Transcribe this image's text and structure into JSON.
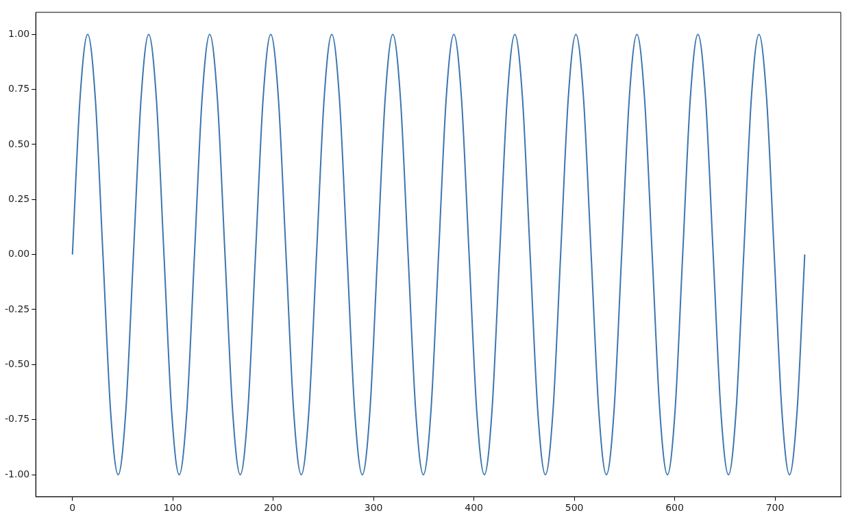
{
  "chart_data": {
    "type": "line",
    "x": [
      0,
      7.6,
      15.2,
      22.8,
      30.4,
      38,
      45.6,
      53.2,
      60.8,
      68.4,
      76,
      83.6,
      91.2,
      98.8,
      106.4,
      114,
      121.6,
      129.2,
      136.8,
      144.4,
      152,
      159.6,
      167.2,
      174.8,
      182.4,
      190,
      197.6,
      205.2,
      212.8,
      220.4,
      228,
      235.6,
      243.2,
      250.8,
      258.4,
      266,
      273.6,
      281.2,
      288.8,
      296.4,
      304,
      311.6,
      319.2,
      326.8,
      334.4,
      342,
      349.6,
      357.2,
      364.8,
      372.4,
      380,
      387.6,
      395.2,
      402.8,
      410.4,
      418,
      425.6,
      433.2,
      440.8,
      448.4,
      456,
      463.6,
      471.2,
      478.8,
      486.4,
      494,
      501.6,
      509.2,
      516.8,
      524.4,
      532,
      539.6,
      547.2,
      554.8,
      562.4,
      570,
      577.6,
      585.2,
      592.8,
      600.4,
      608,
      615.6,
      623.2,
      630.8,
      638.4,
      646,
      653.6,
      661.2,
      668.8,
      676.4,
      684,
      691.6,
      699.2,
      706.8,
      714.4,
      722,
      729.6
    ],
    "series": [
      {
        "color": "#3b75af",
        "values": [
          0,
          0.71,
          1,
          0.71,
          0,
          -0.71,
          -1,
          -0.71,
          0,
          0.71,
          1,
          0.71,
          0,
          -0.71,
          -1,
          -0.71,
          0,
          0.71,
          1,
          0.71,
          0,
          -0.71,
          -1,
          -0.71,
          0,
          0.71,
          1,
          0.71,
          0,
          -0.71,
          -1,
          -0.71,
          0,
          0.71,
          1,
          0.71,
          0,
          -0.71,
          -1,
          -0.71,
          0,
          0.71,
          1,
          0.71,
          0,
          -0.71,
          -1,
          -0.71,
          0,
          0.71,
          1,
          0.71,
          0,
          -0.71,
          -1,
          -0.71,
          0,
          0.71,
          1,
          0.71,
          0,
          -0.71,
          -1,
          -0.71,
          0,
          0.71,
          1,
          0.71,
          0,
          -0.71,
          -1,
          -0.71,
          0,
          0.71,
          1,
          0.71,
          0,
          -0.71,
          -1,
          -0.71,
          0,
          0.71,
          1,
          0.71,
          0,
          -0.71,
          -1,
          -0.71,
          0,
          0.71,
          1,
          0.71,
          0,
          -0.71,
          -1,
          -0.71,
          0
        ]
      }
    ],
    "xlim": [
      -36.5,
      765.5
    ],
    "xticks": [
      0,
      100,
      200,
      300,
      400,
      500,
      600,
      700
    ],
    "ylim": [
      -1.1,
      1.1
    ],
    "yticks": [
      {
        "value": -1,
        "label": "-1.00"
      },
      {
        "value": -0.75,
        "label": "-0.75"
      },
      {
        "value": -0.5,
        "label": "-0.50"
      },
      {
        "value": -0.25,
        "label": "-0.25"
      },
      {
        "value": 0,
        "label": "0.00"
      },
      {
        "value": 0.25,
        "label": "0.25"
      },
      {
        "value": 0.5,
        "label": "0.50"
      },
      {
        "value": 0.75,
        "label": "0.75"
      },
      {
        "value": 1,
        "label": "1.00"
      }
    ],
    "grid": false,
    "legend": false,
    "marker": "none",
    "line_style": "solid"
  }
}
